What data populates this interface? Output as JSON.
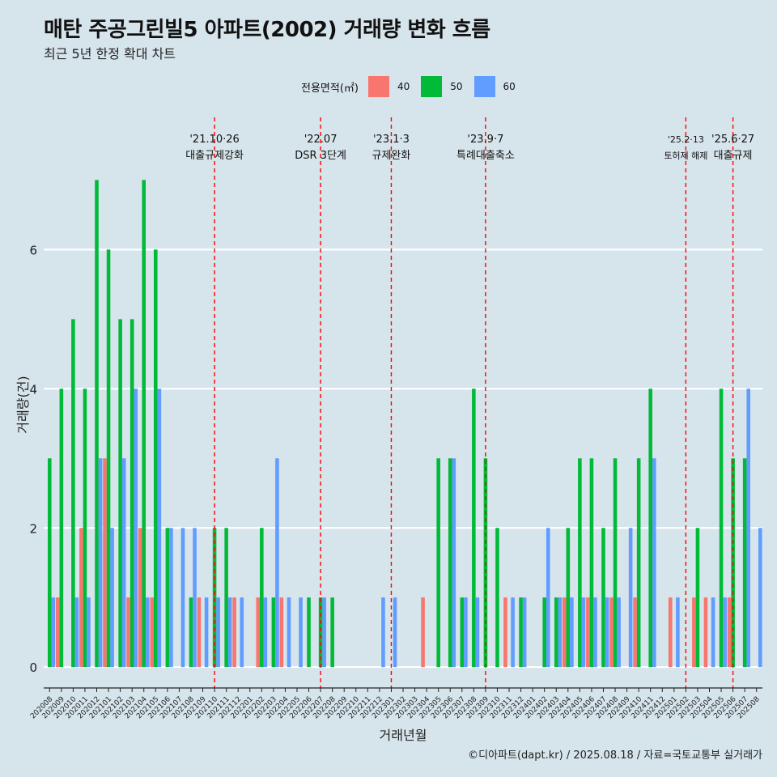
{
  "title": "매탄 주공그린빌5 아파트(2002) 거래량 변화 흐름",
  "subtitle": "최근 5년 한정 확대 차트",
  "caption": "©디아파트(dapt.kr) / 2025.08.18 / 자료=국토교통부 실거래가",
  "legend": {
    "title": "전용면적(㎡)",
    "items": [
      {
        "label": "40",
        "color": "#f8766d"
      },
      {
        "label": "50",
        "color": "#00ba38"
      },
      {
        "label": "60",
        "color": "#619cff"
      }
    ]
  },
  "chart_data": {
    "type": "bar",
    "xlabel": "거래년월",
    "ylabel": "거래량(건)",
    "ylim": [
      -0.3,
      7.9
    ],
    "yticks": [
      0,
      2,
      4,
      6
    ],
    "legend_position": "top",
    "grid": "horizontal",
    "x": [
      "202008",
      "202009",
      "202010",
      "202011",
      "202012",
      "202101",
      "202102",
      "202103",
      "202104",
      "202105",
      "202106",
      "202107",
      "202108",
      "202109",
      "202110",
      "202111",
      "202112",
      "202201",
      "202202",
      "202203",
      "202204",
      "202205",
      "202206",
      "202207",
      "202208",
      "202209",
      "202210",
      "202211",
      "202212",
      "202301",
      "202302",
      "202303",
      "202304",
      "202305",
      "202306",
      "202307",
      "202308",
      "202309",
      "202310",
      "202311",
      "202312",
      "202401",
      "202402",
      "202403",
      "202404",
      "202405",
      "202406",
      "202407",
      "202408",
      "202409",
      "202410",
      "202411",
      "202412",
      "202501",
      "202502",
      "202503",
      "202504",
      "202505",
      "202506",
      "202507",
      "202508"
    ],
    "series": [
      {
        "name": "40",
        "color": "#f8766d",
        "values": [
          0,
          1,
          0,
          2,
          0,
          3,
          0,
          1,
          2,
          1,
          0,
          0,
          0,
          1,
          0,
          0,
          1,
          0,
          1,
          0,
          1,
          0,
          0,
          0,
          0,
          0,
          0,
          0,
          0,
          0,
          0,
          0,
          1,
          0,
          0,
          0,
          0,
          0,
          0,
          1,
          0,
          0,
          0,
          0,
          1,
          0,
          1,
          0,
          1,
          0,
          1,
          0,
          0,
          1,
          0,
          1,
          1,
          0,
          1,
          0,
          0
        ]
      },
      {
        "name": "50",
        "color": "#00ba38",
        "values": [
          3,
          4,
          5,
          4,
          7,
          6,
          5,
          5,
          7,
          6,
          2,
          0,
          1,
          0,
          2,
          2,
          0,
          0,
          2,
          1,
          0,
          0,
          1,
          1,
          1,
          0,
          0,
          0,
          0,
          0,
          0,
          0,
          0,
          3,
          3,
          1,
          4,
          3,
          2,
          0,
          1,
          0,
          1,
          1,
          2,
          3,
          3,
          2,
          3,
          0,
          3,
          4,
          0,
          0,
          0,
          2,
          0,
          4,
          3,
          3,
          0
        ]
      },
      {
        "name": "60",
        "color": "#619cff",
        "values": [
          1,
          0,
          1,
          1,
          3,
          2,
          3,
          4,
          1,
          4,
          2,
          2,
          2,
          1,
          1,
          1,
          1,
          0,
          1,
          3,
          1,
          1,
          0,
          1,
          0,
          0,
          0,
          0,
          1,
          1,
          0,
          0,
          0,
          0,
          3,
          1,
          1,
          0,
          0,
          1,
          1,
          0,
          2,
          1,
          1,
          1,
          1,
          1,
          1,
          2,
          0,
          3,
          0,
          1,
          0,
          0,
          1,
          1,
          0,
          4,
          2
        ]
      }
    ],
    "events": [
      {
        "x": "202110",
        "date": "'21.10·26",
        "label": "대출규제강화"
      },
      {
        "x": "202207",
        "date": "'22.07",
        "label": "DSR 3단계"
      },
      {
        "x": "202301",
        "date": "'23.1·3",
        "label": "규제완화"
      },
      {
        "x": "202309",
        "date": "'23.9·7",
        "label": "특례대출축소"
      },
      {
        "x": "202502",
        "date": "'25.2·13",
        "label": "토허제 해제"
      },
      {
        "x": "202506",
        "date": "'25.6·27",
        "label": "대출규제"
      }
    ]
  }
}
